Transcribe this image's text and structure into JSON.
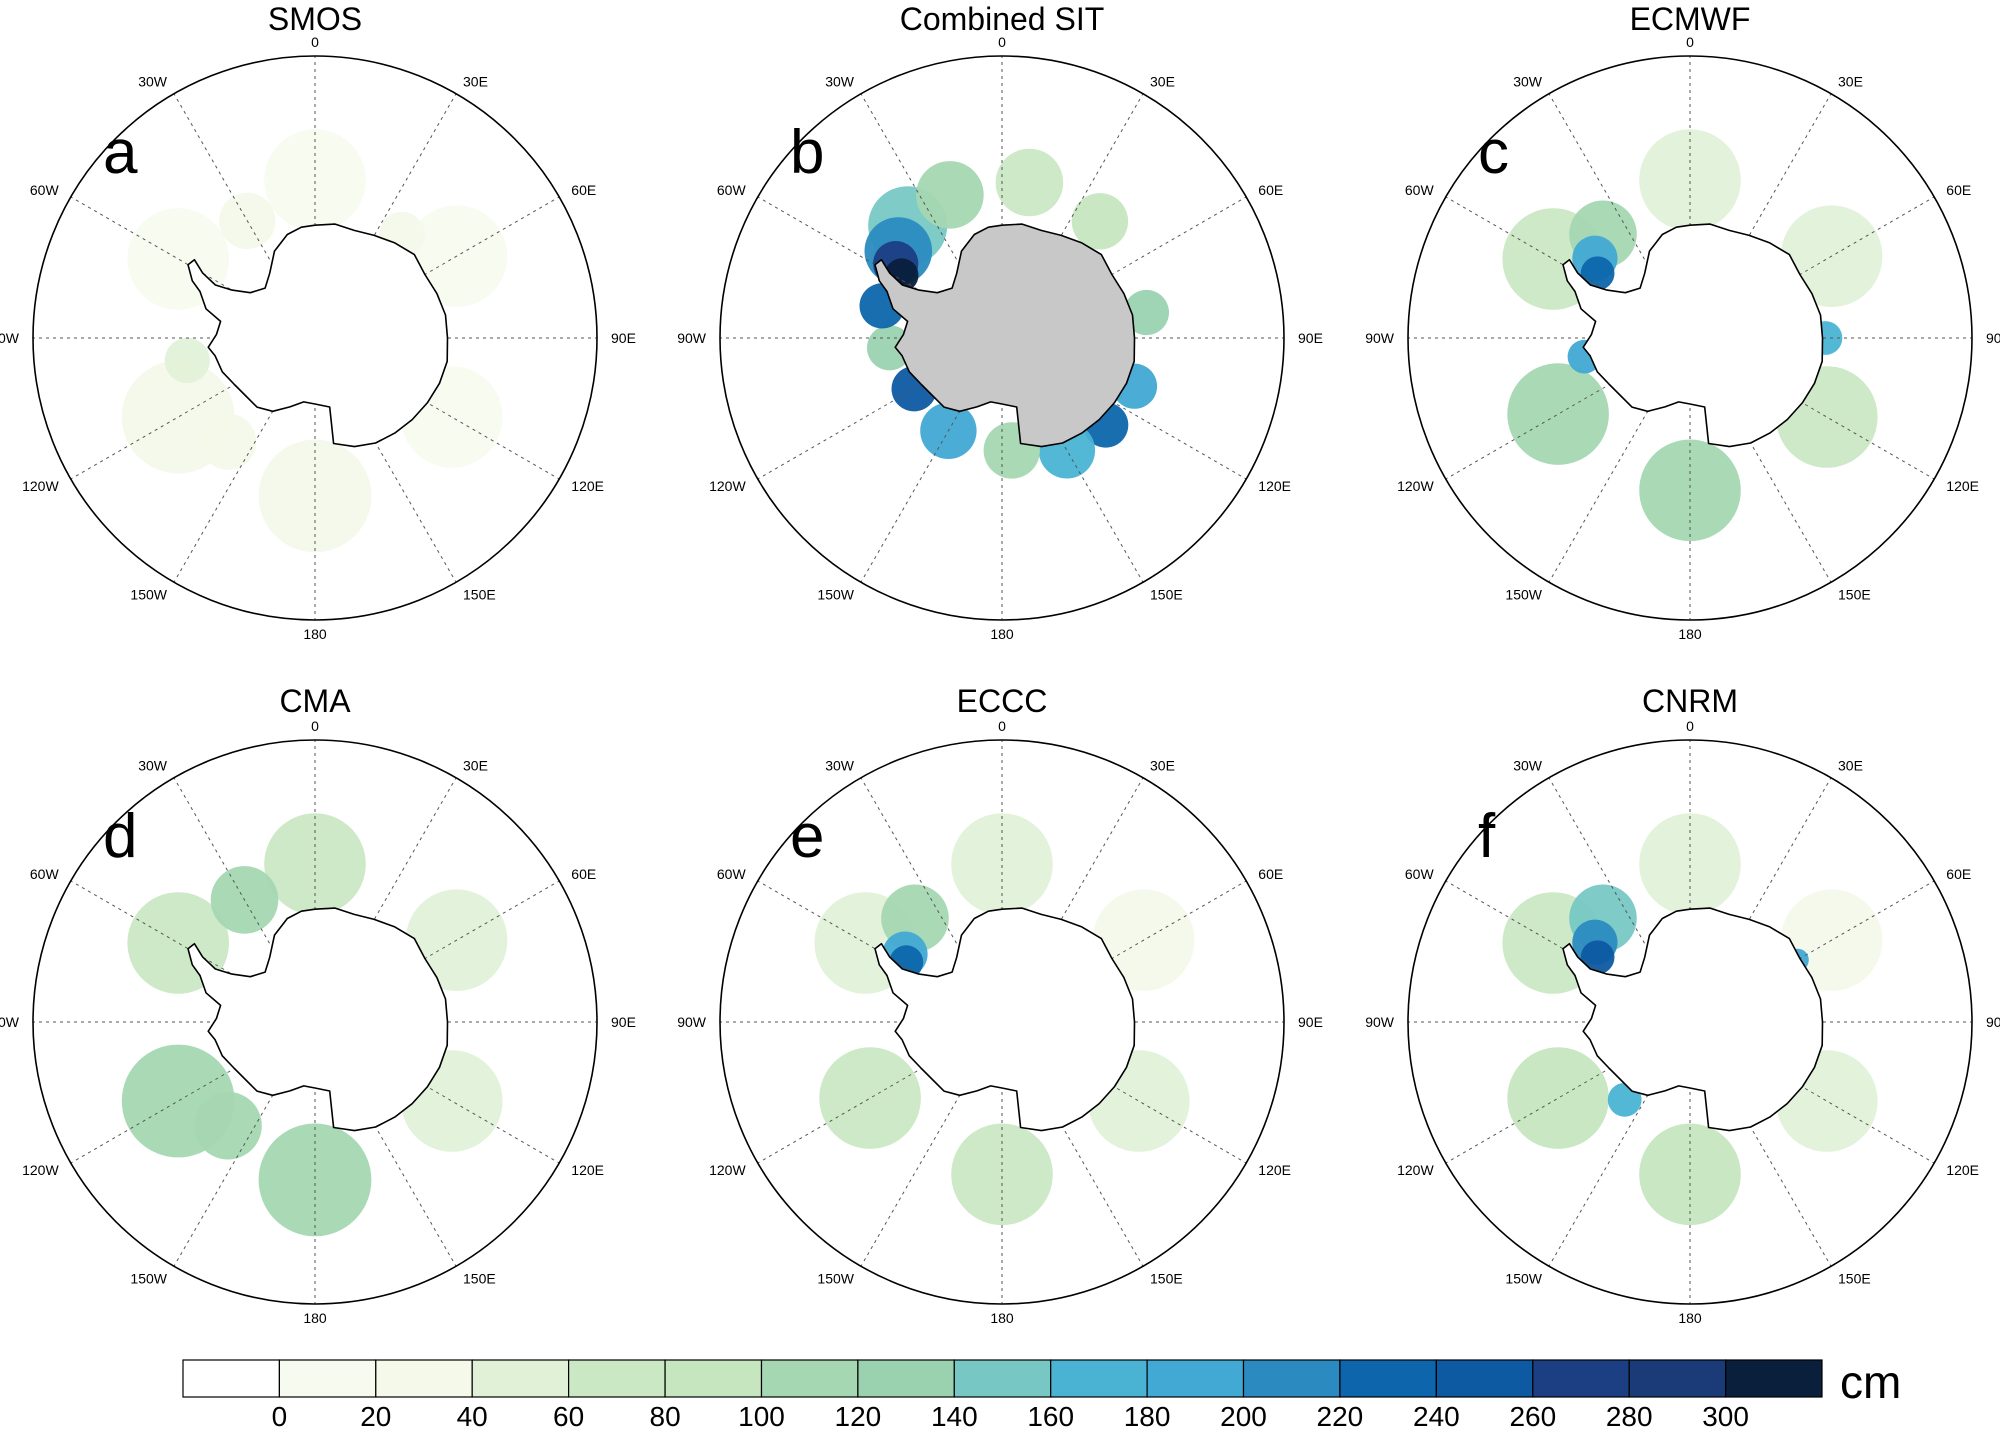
{
  "panels": [
    {
      "id": "a",
      "title": "SMOS",
      "letter": "a",
      "land": "white"
    },
    {
      "id": "b",
      "title": "Combined SIT",
      "letter": "b",
      "land": "grey"
    },
    {
      "id": "c",
      "title": "ECMWF",
      "letter": "c",
      "land": "white"
    },
    {
      "id": "d",
      "title": "CMA",
      "letter": "d",
      "land": "white"
    },
    {
      "id": "e",
      "title": "ECCC",
      "letter": "e",
      "land": "white"
    },
    {
      "id": "f",
      "title": "CNRM",
      "letter": "f",
      "land": "white"
    }
  ],
  "longitude_labels": [
    "0",
    "30E",
    "60E",
    "90E",
    "120E",
    "150E",
    "180",
    "150W",
    "120W",
    "90W",
    "60W",
    "30W"
  ],
  "colorbar": {
    "unit": "cm",
    "tick_labels": [
      "0",
      "20",
      "40",
      "60",
      "80",
      "100",
      "120",
      "140",
      "160",
      "180",
      "200",
      "220",
      "240",
      "260",
      "280",
      "300"
    ],
    "colors": [
      "#ffffff",
      "#f7fbef",
      "#f4f9ea",
      "#e1f1d8",
      "#cbe8c4",
      "#c6e6bf",
      "#a5d7b2",
      "#9ad2b0",
      "#77c8c4",
      "#4ab3d4",
      "#41a9d4",
      "#2b8bc0",
      "#0d66ac",
      "#0d5aa2",
      "#1c3f83",
      "#1a3a78",
      "#0a1f3c"
    ]
  },
  "land_colors": {
    "white": "#ffffff",
    "grey": "#c8c8c8"
  }
}
